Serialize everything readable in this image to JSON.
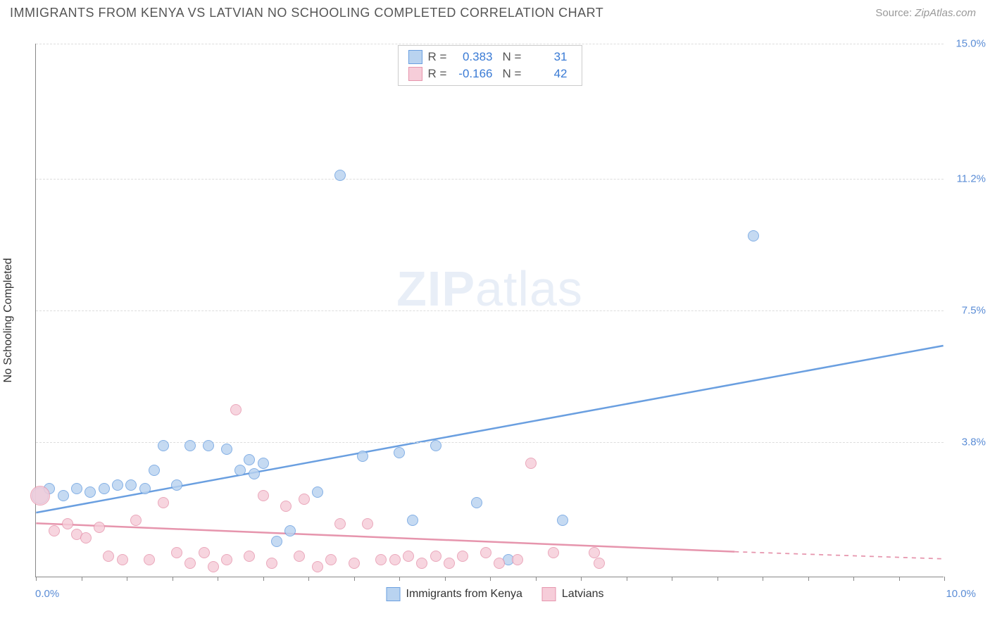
{
  "title": "IMMIGRANTS FROM KENYA VS LATVIAN NO SCHOOLING COMPLETED CORRELATION CHART",
  "source_label": "Source:",
  "source_value": "ZipAtlas.com",
  "watermark_bold": "ZIP",
  "watermark_light": "atlas",
  "ylabel": "No Schooling Completed",
  "chart": {
    "type": "scatter",
    "xlim": [
      0.0,
      10.0
    ],
    "ylim": [
      0.0,
      15.0
    ],
    "yticks": [
      {
        "v": 15.0,
        "label": "15.0%"
      },
      {
        "v": 11.2,
        "label": "11.2%"
      },
      {
        "v": 7.5,
        "label": "7.5%"
      },
      {
        "v": 3.8,
        "label": "3.8%"
      }
    ],
    "xtick_left": "0.0%",
    "xtick_right": "10.0%",
    "xtick_minor_count": 20,
    "ytick_color": "#5b8dd6",
    "xtick_color": "#5b8dd6",
    "grid_color": "#dddddd",
    "background_color": "#ffffff"
  },
  "series": [
    {
      "name": "Immigrants from Kenya",
      "color_fill": "#b9d3f0",
      "color_stroke": "#6a9fe0",
      "r": "0.383",
      "n": "31",
      "trend": {
        "x1": 0.0,
        "y1": 1.8,
        "x2": 10.0,
        "y2": 6.5,
        "width": 2.5,
        "dash": "none"
      },
      "marker_r": 8,
      "points": [
        {
          "x": 0.05,
          "y": 2.3,
          "r": 12
        },
        {
          "x": 0.15,
          "y": 2.5
        },
        {
          "x": 0.3,
          "y": 2.3
        },
        {
          "x": 0.45,
          "y": 2.5
        },
        {
          "x": 0.6,
          "y": 2.4
        },
        {
          "x": 0.75,
          "y": 2.5
        },
        {
          "x": 0.9,
          "y": 2.6
        },
        {
          "x": 1.05,
          "y": 2.6
        },
        {
          "x": 1.2,
          "y": 2.5
        },
        {
          "x": 1.3,
          "y": 3.0
        },
        {
          "x": 1.4,
          "y": 3.7
        },
        {
          "x": 1.55,
          "y": 2.6
        },
        {
          "x": 1.7,
          "y": 3.7
        },
        {
          "x": 1.9,
          "y": 3.7
        },
        {
          "x": 2.1,
          "y": 3.6
        },
        {
          "x": 2.25,
          "y": 3.0
        },
        {
          "x": 2.35,
          "y": 3.3
        },
        {
          "x": 2.4,
          "y": 2.9
        },
        {
          "x": 2.5,
          "y": 3.2
        },
        {
          "x": 2.65,
          "y": 1.0
        },
        {
          "x": 2.8,
          "y": 1.3
        },
        {
          "x": 3.1,
          "y": 2.4
        },
        {
          "x": 3.35,
          "y": 11.3
        },
        {
          "x": 3.6,
          "y": 3.4
        },
        {
          "x": 4.0,
          "y": 3.5
        },
        {
          "x": 4.15,
          "y": 1.6
        },
        {
          "x": 4.4,
          "y": 3.7
        },
        {
          "x": 5.2,
          "y": 0.5
        },
        {
          "x": 5.8,
          "y": 1.6
        },
        {
          "x": 7.9,
          "y": 9.6
        },
        {
          "x": 4.85,
          "y": 2.1
        }
      ]
    },
    {
      "name": "Latvians",
      "color_fill": "#f6cdd9",
      "color_stroke": "#e695ad",
      "r": "-0.166",
      "n": "42",
      "trend": {
        "x1": 0.0,
        "y1": 1.5,
        "x2": 7.7,
        "y2": 0.7,
        "width": 2.5,
        "dash": "none",
        "dashed_ext": {
          "x2": 10.0,
          "y2": 0.5
        }
      },
      "marker_r": 8,
      "points": [
        {
          "x": 0.05,
          "y": 2.3,
          "r": 14
        },
        {
          "x": 0.2,
          "y": 1.3
        },
        {
          "x": 0.35,
          "y": 1.5
        },
        {
          "x": 0.45,
          "y": 1.2
        },
        {
          "x": 0.55,
          "y": 1.1
        },
        {
          "x": 0.7,
          "y": 1.4
        },
        {
          "x": 0.8,
          "y": 0.6
        },
        {
          "x": 0.95,
          "y": 0.5
        },
        {
          "x": 1.1,
          "y": 1.6
        },
        {
          "x": 1.25,
          "y": 0.5
        },
        {
          "x": 1.4,
          "y": 2.1
        },
        {
          "x": 1.55,
          "y": 0.7
        },
        {
          "x": 1.7,
          "y": 0.4
        },
        {
          "x": 1.85,
          "y": 0.7
        },
        {
          "x": 1.95,
          "y": 0.3
        },
        {
          "x": 2.1,
          "y": 0.5
        },
        {
          "x": 2.2,
          "y": 4.7
        },
        {
          "x": 2.35,
          "y": 0.6
        },
        {
          "x": 2.5,
          "y": 2.3
        },
        {
          "x": 2.6,
          "y": 0.4
        },
        {
          "x": 2.75,
          "y": 2.0
        },
        {
          "x": 2.9,
          "y": 0.6
        },
        {
          "x": 2.95,
          "y": 2.2
        },
        {
          "x": 3.1,
          "y": 0.3
        },
        {
          "x": 3.25,
          "y": 0.5
        },
        {
          "x": 3.35,
          "y": 1.5
        },
        {
          "x": 3.5,
          "y": 0.4
        },
        {
          "x": 3.65,
          "y": 1.5
        },
        {
          "x": 3.8,
          "y": 0.5
        },
        {
          "x": 3.95,
          "y": 0.5
        },
        {
          "x": 4.1,
          "y": 0.6
        },
        {
          "x": 4.25,
          "y": 0.4
        },
        {
          "x": 4.4,
          "y": 0.6
        },
        {
          "x": 4.55,
          "y": 0.4
        },
        {
          "x": 4.7,
          "y": 0.6
        },
        {
          "x": 4.95,
          "y": 0.7
        },
        {
          "x": 5.1,
          "y": 0.4
        },
        {
          "x": 5.3,
          "y": 0.5
        },
        {
          "x": 5.45,
          "y": 3.2
        },
        {
          "x": 5.7,
          "y": 0.7
        },
        {
          "x": 6.2,
          "y": 0.4
        },
        {
          "x": 6.15,
          "y": 0.7
        }
      ]
    }
  ],
  "stat_legend": {
    "r_label": "R =",
    "n_label": "N =",
    "value_color": "#3a7bd5"
  },
  "bottom_legend": {
    "items": [
      "Immigrants from Kenya",
      "Latvians"
    ]
  }
}
